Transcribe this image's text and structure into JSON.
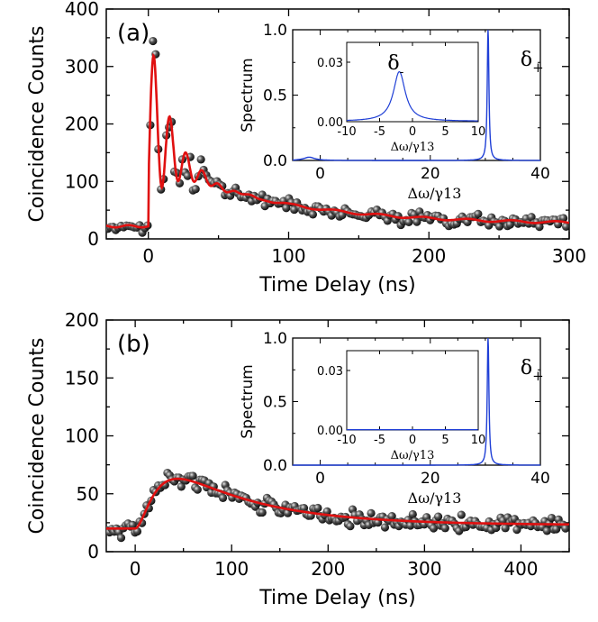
{
  "chart_data": [
    {
      "type": "scatter",
      "panel_label": "(a)",
      "xlabel": "Time Delay (ns)",
      "ylabel": "Coincidence Counts",
      "xlim": [
        -30,
        300
      ],
      "ylim": [
        0,
        400
      ],
      "x_ticks": [
        "0",
        "100",
        "200",
        "300"
      ],
      "y_ticks": [
        "0",
        "100",
        "200",
        "300",
        "400"
      ],
      "series": [
        {
          "name": "data",
          "marker": "sphere",
          "color": "#333333"
        },
        {
          "name": "fit",
          "style": "line",
          "color": "#e01010",
          "x": [
            -30,
            0,
            4,
            10,
            16,
            22,
            28,
            40,
            60,
            100,
            150,
            200,
            250,
            300
          ],
          "y": [
            22,
            24,
            350,
            40,
            260,
            50,
            180,
            160,
            110,
            80,
            60,
            47,
            38,
            32
          ]
        }
      ],
      "inset": {
        "xlabel": "Δω/γ13",
        "ylabel": "Spectrum",
        "xlim": [
          -5,
          40
        ],
        "ylim": [
          0,
          1.0
        ],
        "x_ticks": [
          "0",
          "20",
          "40"
        ],
        "y_ticks": [
          "0.0",
          "0.5",
          "1.0"
        ],
        "peak_annotation": "δ+",
        "peaks": [
          {
            "x": -2,
            "y": 0.025
          },
          {
            "x": 30.5,
            "y": 1.0
          }
        ],
        "sub_inset": {
          "xlabel": "Δω/γ13",
          "xlim": [
            -10,
            10
          ],
          "ylim": [
            0,
            0.04
          ],
          "x_ticks": [
            "-10",
            "-5",
            "0",
            "5",
            "10"
          ],
          "y_ticks": [
            "0.00",
            "0.03"
          ],
          "peak_annotation": "δ-",
          "peak": {
            "x": -2,
            "y": 0.025
          }
        }
      }
    },
    {
      "type": "scatter",
      "panel_label": "(b)",
      "xlabel": "Time Delay (ns)",
      "ylabel": "Coincidence Counts",
      "xlim": [
        -30,
        450
      ],
      "ylim": [
        0,
        200
      ],
      "x_ticks": [
        "0",
        "100",
        "200",
        "300",
        "400"
      ],
      "y_ticks": [
        "0",
        "50",
        "100",
        "150",
        "200"
      ],
      "series": [
        {
          "name": "data",
          "marker": "sphere",
          "color": "#333333"
        },
        {
          "name": "fit",
          "style": "line",
          "color": "#e01010",
          "x": [
            -30,
            0,
            20,
            40,
            50,
            70,
            100,
            150,
            200,
            300,
            400,
            450
          ],
          "y": [
            20,
            22,
            45,
            68,
            70,
            64,
            52,
            40,
            33,
            26,
            22,
            21
          ]
        }
      ],
      "inset": {
        "xlabel": "Δω/γ13",
        "ylabel": "Spectrum",
        "xlim": [
          -5,
          40
        ],
        "ylim": [
          0,
          1.0
        ],
        "x_ticks": [
          "0",
          "20",
          "40"
        ],
        "y_ticks": [
          "0.0",
          "0.5",
          "1.0"
        ],
        "peak_annotation": "δ+",
        "peaks": [
          {
            "x": 30.5,
            "y": 1.0
          }
        ],
        "sub_inset": {
          "xlabel": "Δω/γ13",
          "xlim": [
            -10,
            10
          ],
          "ylim": [
            0,
            0.04
          ],
          "x_ticks": [
            "-10",
            "-5",
            "0",
            "5",
            "10"
          ],
          "y_ticks": [
            "0.00",
            "0.03"
          ],
          "peak_annotation": "",
          "peak": null
        }
      }
    }
  ]
}
